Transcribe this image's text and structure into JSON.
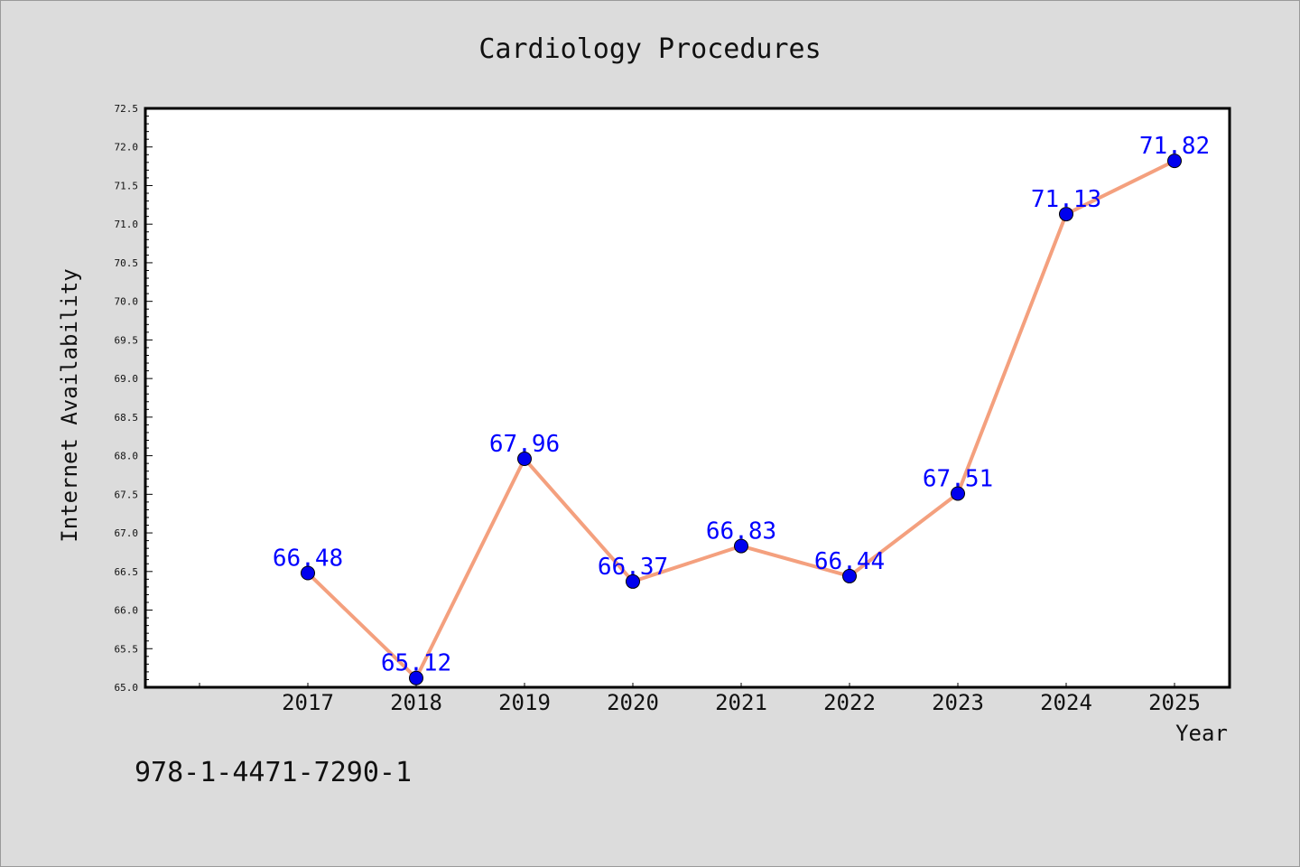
{
  "chart_data": {
    "type": "line",
    "title": "Cardiology Procedures",
    "xlabel": "Year",
    "ylabel": "Internet Availability",
    "x": [
      "2017",
      "2018",
      "2019",
      "2020",
      "2021",
      "2022",
      "2023",
      "2024",
      "2025"
    ],
    "series": [
      {
        "values": [
          66.48,
          65.12,
          67.96,
          66.37,
          66.83,
          66.44,
          67.51,
          71.13,
          71.82
        ],
        "data_labels": [
          "66.48",
          "65.12",
          "67.96",
          "66.37",
          "66.83",
          "66.44",
          "67.51",
          "71.13",
          "71.82"
        ],
        "line_color": "#f4a07e",
        "marker_color": "#0000ee"
      }
    ],
    "ylim": [
      65.0,
      72.5
    ],
    "yticks": [
      "65.0",
      "65.5",
      "66.0",
      "66.5",
      "67.0",
      "67.5",
      "68.0",
      "68.5",
      "69.0",
      "69.5",
      "70.0",
      "70.5",
      "71.0",
      "71.5",
      "72.0",
      "72.5"
    ],
    "grid": false,
    "legend": "none",
    "data_label_color": "#0000ff",
    "background_color": "#dcdcdc",
    "plot_background_color": "#ffffff"
  },
  "footer": {
    "isbn": "978-1-4471-7290-1"
  }
}
